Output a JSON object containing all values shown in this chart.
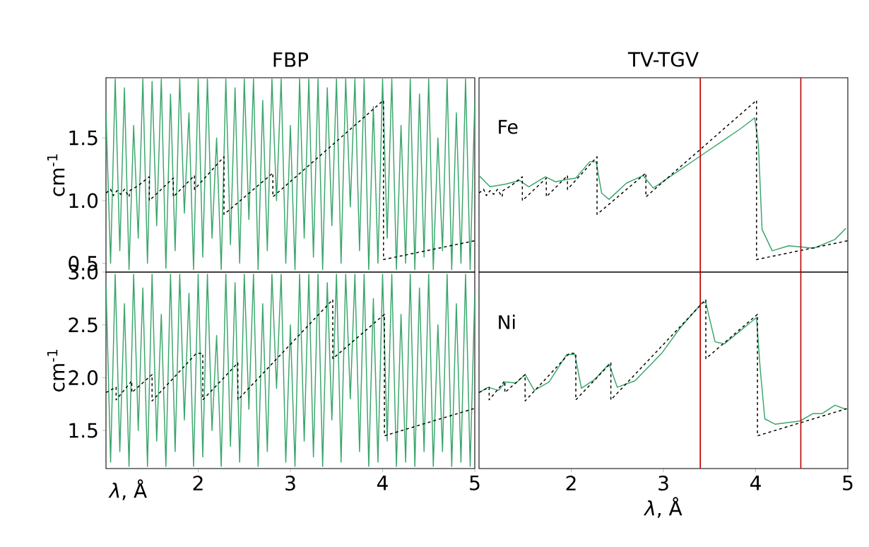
{
  "chart_data": [
    {
      "type": "line",
      "title": "FBP",
      "ylabel": "cm$^{-1}$",
      "xlim": [
        1.0,
        5.0
      ],
      "ylim": [
        0.43,
        1.98
      ],
      "xticks": [
        2,
        3,
        4,
        5
      ],
      "yticks": [
        0.5,
        {
          "value": 1.0,
          "label": "1.0"
        },
        1.5
      ],
      "tick_labels": "y",
      "series": [
        {
          "color": "#3aa66b",
          "line_style": "solid",
          "x": [
            1.0,
            1.05,
            1.1,
            1.15,
            1.2,
            1.25,
            1.3,
            1.35,
            1.4,
            1.45,
            1.5,
            1.55,
            1.6,
            1.65,
            1.7,
            1.75,
            1.8,
            1.85,
            1.9,
            1.95,
            2.0,
            2.05,
            2.1,
            2.15,
            2.2,
            2.25,
            2.3,
            2.35,
            2.4,
            2.45,
            2.5,
            2.55,
            2.6,
            2.65,
            2.7,
            2.75,
            2.8,
            2.85,
            2.9,
            2.95,
            3.0,
            3.05,
            3.1,
            3.15,
            3.2,
            3.25,
            3.3,
            3.35,
            3.4,
            3.45,
            3.5,
            3.55,
            3.6,
            3.65,
            3.7,
            3.75,
            3.8,
            3.85,
            3.9,
            3.95,
            4.0,
            4.05,
            4.1,
            4.15,
            4.2,
            4.25,
            4.3,
            4.35,
            4.4,
            4.45,
            4.5,
            4.55,
            4.6,
            4.65,
            4.7,
            4.75,
            4.8,
            4.85,
            4.9,
            4.95,
            5.0
          ],
          "values": [
            1.7,
            0.5,
            1.97,
            0.6,
            1.9,
            0.45,
            1.6,
            0.7,
            1.97,
            0.5,
            1.95,
            0.8,
            1.97,
            0.46,
            1.85,
            0.6,
            1.97,
            0.9,
            1.7,
            0.45,
            1.97,
            0.55,
            1.97,
            0.7,
            1.5,
            0.45,
            1.97,
            0.65,
            1.9,
            0.5,
            1.97,
            0.85,
            1.97,
            0.45,
            1.8,
            0.6,
            1.97,
            1.0,
            1.97,
            0.5,
            1.6,
            0.45,
            1.97,
            0.7,
            1.97,
            0.55,
            1.97,
            0.45,
            1.9,
            0.8,
            1.97,
            0.5,
            1.97,
            0.95,
            1.97,
            0.6,
            1.97,
            0.45,
            1.75,
            0.5,
            1.97,
            0.7,
            1.97,
            0.45,
            1.6,
            0.5,
            1.97,
            0.45,
            1.85,
            0.55,
            1.97,
            0.45,
            1.5,
            0.6,
            1.97,
            0.45,
            1.7,
            0.5,
            1.97,
            0.45,
            1.8
          ]
        },
        {
          "color": "#000000",
          "line_style": "dashed",
          "x": [
            1.0,
            1.05,
            1.08,
            1.12,
            1.16,
            1.2,
            1.25,
            1.26,
            1.35,
            1.47,
            1.47,
            1.73,
            1.73,
            1.96,
            1.96,
            2.28,
            2.28,
            2.81,
            2.81,
            4.01,
            4.01,
            5.0
          ],
          "values": [
            1.06,
            1.09,
            1.04,
            1.08,
            1.05,
            1.09,
            1.03,
            1.08,
            1.12,
            1.19,
            1.0,
            1.18,
            1.03,
            1.2,
            1.09,
            1.35,
            0.89,
            1.22,
            1.03,
            1.8,
            0.53,
            0.68
          ]
        }
      ]
    },
    {
      "type": "line",
      "title": "TV-TGV",
      "xlim": [
        1.0,
        5.0
      ],
      "ylim": [
        0.43,
        1.98
      ],
      "xticks": [
        2,
        3,
        4,
        5
      ],
      "yticks": [
        0.5,
        1.0,
        1.5
      ],
      "tick_labels": false,
      "annotations": [
        "Fe"
      ],
      "ref_lines": [
        {
          "axis": "x",
          "value": 3.4,
          "color": "#c00000"
        },
        {
          "axis": "x",
          "value": 4.49,
          "color": "#c00000"
        }
      ],
      "series": [
        {
          "color": "#3aa66b",
          "line_style": "solid",
          "x": [
            1.0,
            1.12,
            1.28,
            1.44,
            1.54,
            1.72,
            1.83,
            1.96,
            2.05,
            2.2,
            2.27,
            2.33,
            2.41,
            2.6,
            2.78,
            2.89,
            3.05,
            3.41,
            3.65,
            3.83,
            3.99,
            4.03,
            4.07,
            4.18,
            4.36,
            4.63,
            4.86,
            4.98
          ],
          "values": [
            1.2,
            1.11,
            1.13,
            1.16,
            1.11,
            1.19,
            1.15,
            1.17,
            1.18,
            1.31,
            1.31,
            1.06,
            1.01,
            1.14,
            1.2,
            1.1,
            1.18,
            1.36,
            1.48,
            1.57,
            1.66,
            1.45,
            0.77,
            0.6,
            0.64,
            0.62,
            0.69,
            0.78
          ]
        },
        {
          "color": "#000000",
          "line_style": "dashed",
          "x": [
            1.0,
            1.05,
            1.08,
            1.12,
            1.16,
            1.2,
            1.25,
            1.26,
            1.35,
            1.47,
            1.47,
            1.73,
            1.73,
            1.96,
            1.96,
            2.28,
            2.28,
            2.81,
            2.81,
            4.01,
            4.01,
            5.0
          ],
          "values": [
            1.06,
            1.09,
            1.04,
            1.08,
            1.05,
            1.09,
            1.03,
            1.08,
            1.12,
            1.19,
            1.0,
            1.18,
            1.03,
            1.2,
            1.09,
            1.35,
            0.89,
            1.22,
            1.03,
            1.8,
            0.53,
            0.68
          ]
        }
      ]
    },
    {
      "type": "line",
      "ylabel": "cm$^{-1}$",
      "xlabel": "*λ*, Å",
      "xlim": [
        1.0,
        5.0
      ],
      "ylim": [
        1.14,
        3.0
      ],
      "xticks": [
        2,
        3,
        4,
        5
      ],
      "yticks": [
        1.5,
        {
          "value": 2.0,
          "label": "2.0"
        },
        2.5,
        {
          "value": 3.0,
          "label": "3.0"
        }
      ],
      "series": [
        {
          "color": "#3aa66b",
          "line_style": "solid",
          "x": [
            1.0,
            1.05,
            1.1,
            1.15,
            1.2,
            1.25,
            1.3,
            1.35,
            1.4,
            1.45,
            1.5,
            1.55,
            1.6,
            1.65,
            1.7,
            1.75,
            1.8,
            1.85,
            1.9,
            1.95,
            2.0,
            2.05,
            2.1,
            2.15,
            2.2,
            2.25,
            2.3,
            2.35,
            2.4,
            2.45,
            2.5,
            2.55,
            2.6,
            2.65,
            2.7,
            2.75,
            2.8,
            2.85,
            2.9,
            2.95,
            3.0,
            3.05,
            3.1,
            3.15,
            3.2,
            3.25,
            3.3,
            3.35,
            3.4,
            3.45,
            3.5,
            3.55,
            3.6,
            3.65,
            3.7,
            3.75,
            3.8,
            3.85,
            3.9,
            3.95,
            4.0,
            4.05,
            4.1,
            4.15,
            4.2,
            4.25,
            4.3,
            4.35,
            4.4,
            4.45,
            4.5,
            4.55,
            4.6,
            4.65,
            4.7,
            4.75,
            4.8,
            4.85,
            4.9,
            4.95,
            5.0
          ],
          "values": [
            2.9,
            1.2,
            2.98,
            1.3,
            2.7,
            1.16,
            2.98,
            1.5,
            2.85,
            1.16,
            2.98,
            1.4,
            2.6,
            1.16,
            2.98,
            1.3,
            2.98,
            1.6,
            2.8,
            1.16,
            2.98,
            1.25,
            2.98,
            1.5,
            2.4,
            1.16,
            2.98,
            1.35,
            2.9,
            1.2,
            2.98,
            1.7,
            2.98,
            1.16,
            2.7,
            1.3,
            2.98,
            1.9,
            2.98,
            1.2,
            2.5,
            1.16,
            2.98,
            1.4,
            2.98,
            1.25,
            2.98,
            1.16,
            2.9,
            1.6,
            2.98,
            1.2,
            2.98,
            1.8,
            2.98,
            1.3,
            2.98,
            1.16,
            2.75,
            1.2,
            2.98,
            1.4,
            2.98,
            1.16,
            2.6,
            1.2,
            2.98,
            1.16,
            2.85,
            1.3,
            2.98,
            1.16,
            2.5,
            1.3,
            2.98,
            1.16,
            2.7,
            1.2,
            2.98,
            1.16,
            2.8
          ]
        },
        {
          "color": "#000000",
          "line_style": "dashed",
          "x": [
            1.0,
            1.11,
            1.11,
            1.28,
            1.28,
            1.5,
            1.5,
            1.98,
            2.05,
            2.05,
            2.43,
            2.43,
            3.46,
            3.46,
            4.02,
            4.02,
            5.0
          ],
          "values": [
            1.86,
            1.91,
            1.79,
            1.97,
            1.86,
            2.03,
            1.78,
            2.23,
            2.23,
            1.79,
            2.14,
            1.79,
            2.74,
            2.18,
            2.6,
            1.45,
            1.71
          ]
        }
      ]
    },
    {
      "type": "line",
      "xlabel": "*λ*, Å",
      "xlim": [
        1.0,
        5.0
      ],
      "ylim": [
        1.14,
        3.0
      ],
      "xticks": [
        2,
        3,
        4,
        5
      ],
      "yticks": [
        1.5,
        2.0,
        2.5,
        3.0
      ],
      "tick_labels": "x",
      "annotations": [
        "Ni"
      ],
      "ref_lines": [
        {
          "axis": "x",
          "value": 3.4,
          "color": "#c00000"
        },
        {
          "axis": "x",
          "value": 4.49,
          "color": "#c00000"
        }
      ],
      "series": [
        {
          "color": "#3aa66b",
          "line_style": "solid",
          "x": [
            1.0,
            1.1,
            1.21,
            1.29,
            1.4,
            1.5,
            1.6,
            1.76,
            1.95,
            2.04,
            2.11,
            2.25,
            2.41,
            2.5,
            2.69,
            2.98,
            3.18,
            3.42,
            3.46,
            3.56,
            3.66,
            4.01,
            4.05,
            4.1,
            4.21,
            4.48,
            4.62,
            4.72,
            4.86,
            4.98
          ],
          "values": [
            1.86,
            1.91,
            1.88,
            1.96,
            1.95,
            2.03,
            1.88,
            1.96,
            2.22,
            2.22,
            1.9,
            1.98,
            2.13,
            1.91,
            1.97,
            2.23,
            2.47,
            2.71,
            2.71,
            2.34,
            2.32,
            2.57,
            2.08,
            1.61,
            1.56,
            1.59,
            1.66,
            1.66,
            1.74,
            1.7
          ]
        },
        {
          "color": "#000000",
          "line_style": "dashed",
          "x": [
            1.0,
            1.11,
            1.11,
            1.28,
            1.28,
            1.5,
            1.5,
            1.98,
            2.05,
            2.05,
            2.43,
            2.43,
            3.46,
            3.46,
            4.02,
            4.02,
            5.0
          ],
          "values": [
            1.86,
            1.91,
            1.79,
            1.97,
            1.86,
            2.03,
            1.78,
            2.23,
            2.23,
            1.79,
            2.14,
            1.79,
            2.74,
            2.18,
            2.6,
            1.45,
            1.71
          ]
        }
      ]
    }
  ]
}
